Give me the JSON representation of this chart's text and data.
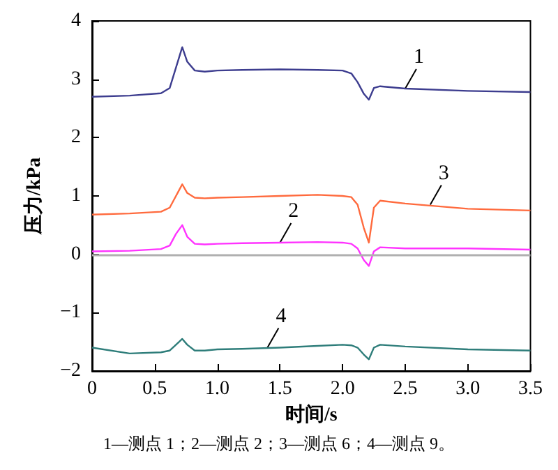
{
  "chart_data": {
    "type": "line",
    "xlabel": "时间/s",
    "ylabel": "压力/kPa",
    "xlim": [
      0,
      3.5
    ],
    "xticks": [
      0,
      0.5,
      {
        "value": 1,
        "label": "1.0"
      },
      1.5,
      {
        "value": 2,
        "label": "2.0"
      },
      2.5,
      {
        "value": 3,
        "label": "3.0"
      },
      3.5
    ],
    "ylim": [
      -2,
      4
    ],
    "yticks": [
      -2,
      -1,
      0,
      1,
      2,
      3,
      4
    ],
    "grid": false,
    "marker": "none",
    "line_style": "solid",
    "x": [
      0,
      0.3,
      0.55,
      0.62,
      0.67,
      0.72,
      0.76,
      0.82,
      0.9,
      1.0,
      1.2,
      1.5,
      1.8,
      2.0,
      2.07,
      2.12,
      2.17,
      2.21,
      2.25,
      2.3,
      2.5,
      3.0,
      3.5
    ],
    "series": [
      {
        "color": "#3d3d8f",
        "values": [
          2.7,
          2.72,
          2.76,
          2.85,
          3.2,
          3.55,
          3.3,
          3.15,
          3.13,
          3.15,
          3.16,
          3.17,
          3.16,
          3.15,
          3.1,
          2.95,
          2.75,
          2.65,
          2.85,
          2.88,
          2.84,
          2.8,
          2.78
        ]
      },
      {
        "color": "#ff33ff",
        "values": [
          0.05,
          0.06,
          0.09,
          0.15,
          0.35,
          0.5,
          0.3,
          0.18,
          0.17,
          0.18,
          0.19,
          0.2,
          0.21,
          0.2,
          0.18,
          0.1,
          -0.1,
          -0.2,
          0.05,
          0.12,
          0.1,
          0.1,
          0.08
        ]
      },
      {
        "color": "#ff6a3d",
        "values": [
          0.68,
          0.7,
          0.73,
          0.8,
          1.0,
          1.2,
          1.05,
          0.97,
          0.96,
          0.97,
          0.98,
          1.0,
          1.02,
          1.0,
          0.98,
          0.85,
          0.45,
          0.2,
          0.8,
          0.92,
          0.87,
          0.78,
          0.75
        ]
      },
      {
        "color": "#2e7d7a",
        "values": [
          -1.6,
          -1.7,
          -1.68,
          -1.65,
          -1.55,
          -1.45,
          -1.55,
          -1.65,
          -1.65,
          -1.63,
          -1.62,
          -1.6,
          -1.57,
          -1.55,
          -1.56,
          -1.6,
          -1.72,
          -1.8,
          -1.6,
          -1.55,
          -1.58,
          -1.63,
          -1.65
        ]
      }
    ],
    "ref_lines": [
      {
        "axis": "y",
        "value": 0,
        "color": "#b0b0b0"
      }
    ],
    "annotations": [
      {
        "text": "1",
        "x": 2.5,
        "y": 2.84
      },
      {
        "text": "2",
        "x": 1.5,
        "y": 0.2
      },
      {
        "text": "3",
        "x": 2.7,
        "y": 0.85
      },
      {
        "text": "4",
        "x": 1.4,
        "y": -1.6
      },
      "1—测点 1；2—测点 2；3—测点 6；4—测点 9。"
    ]
  }
}
